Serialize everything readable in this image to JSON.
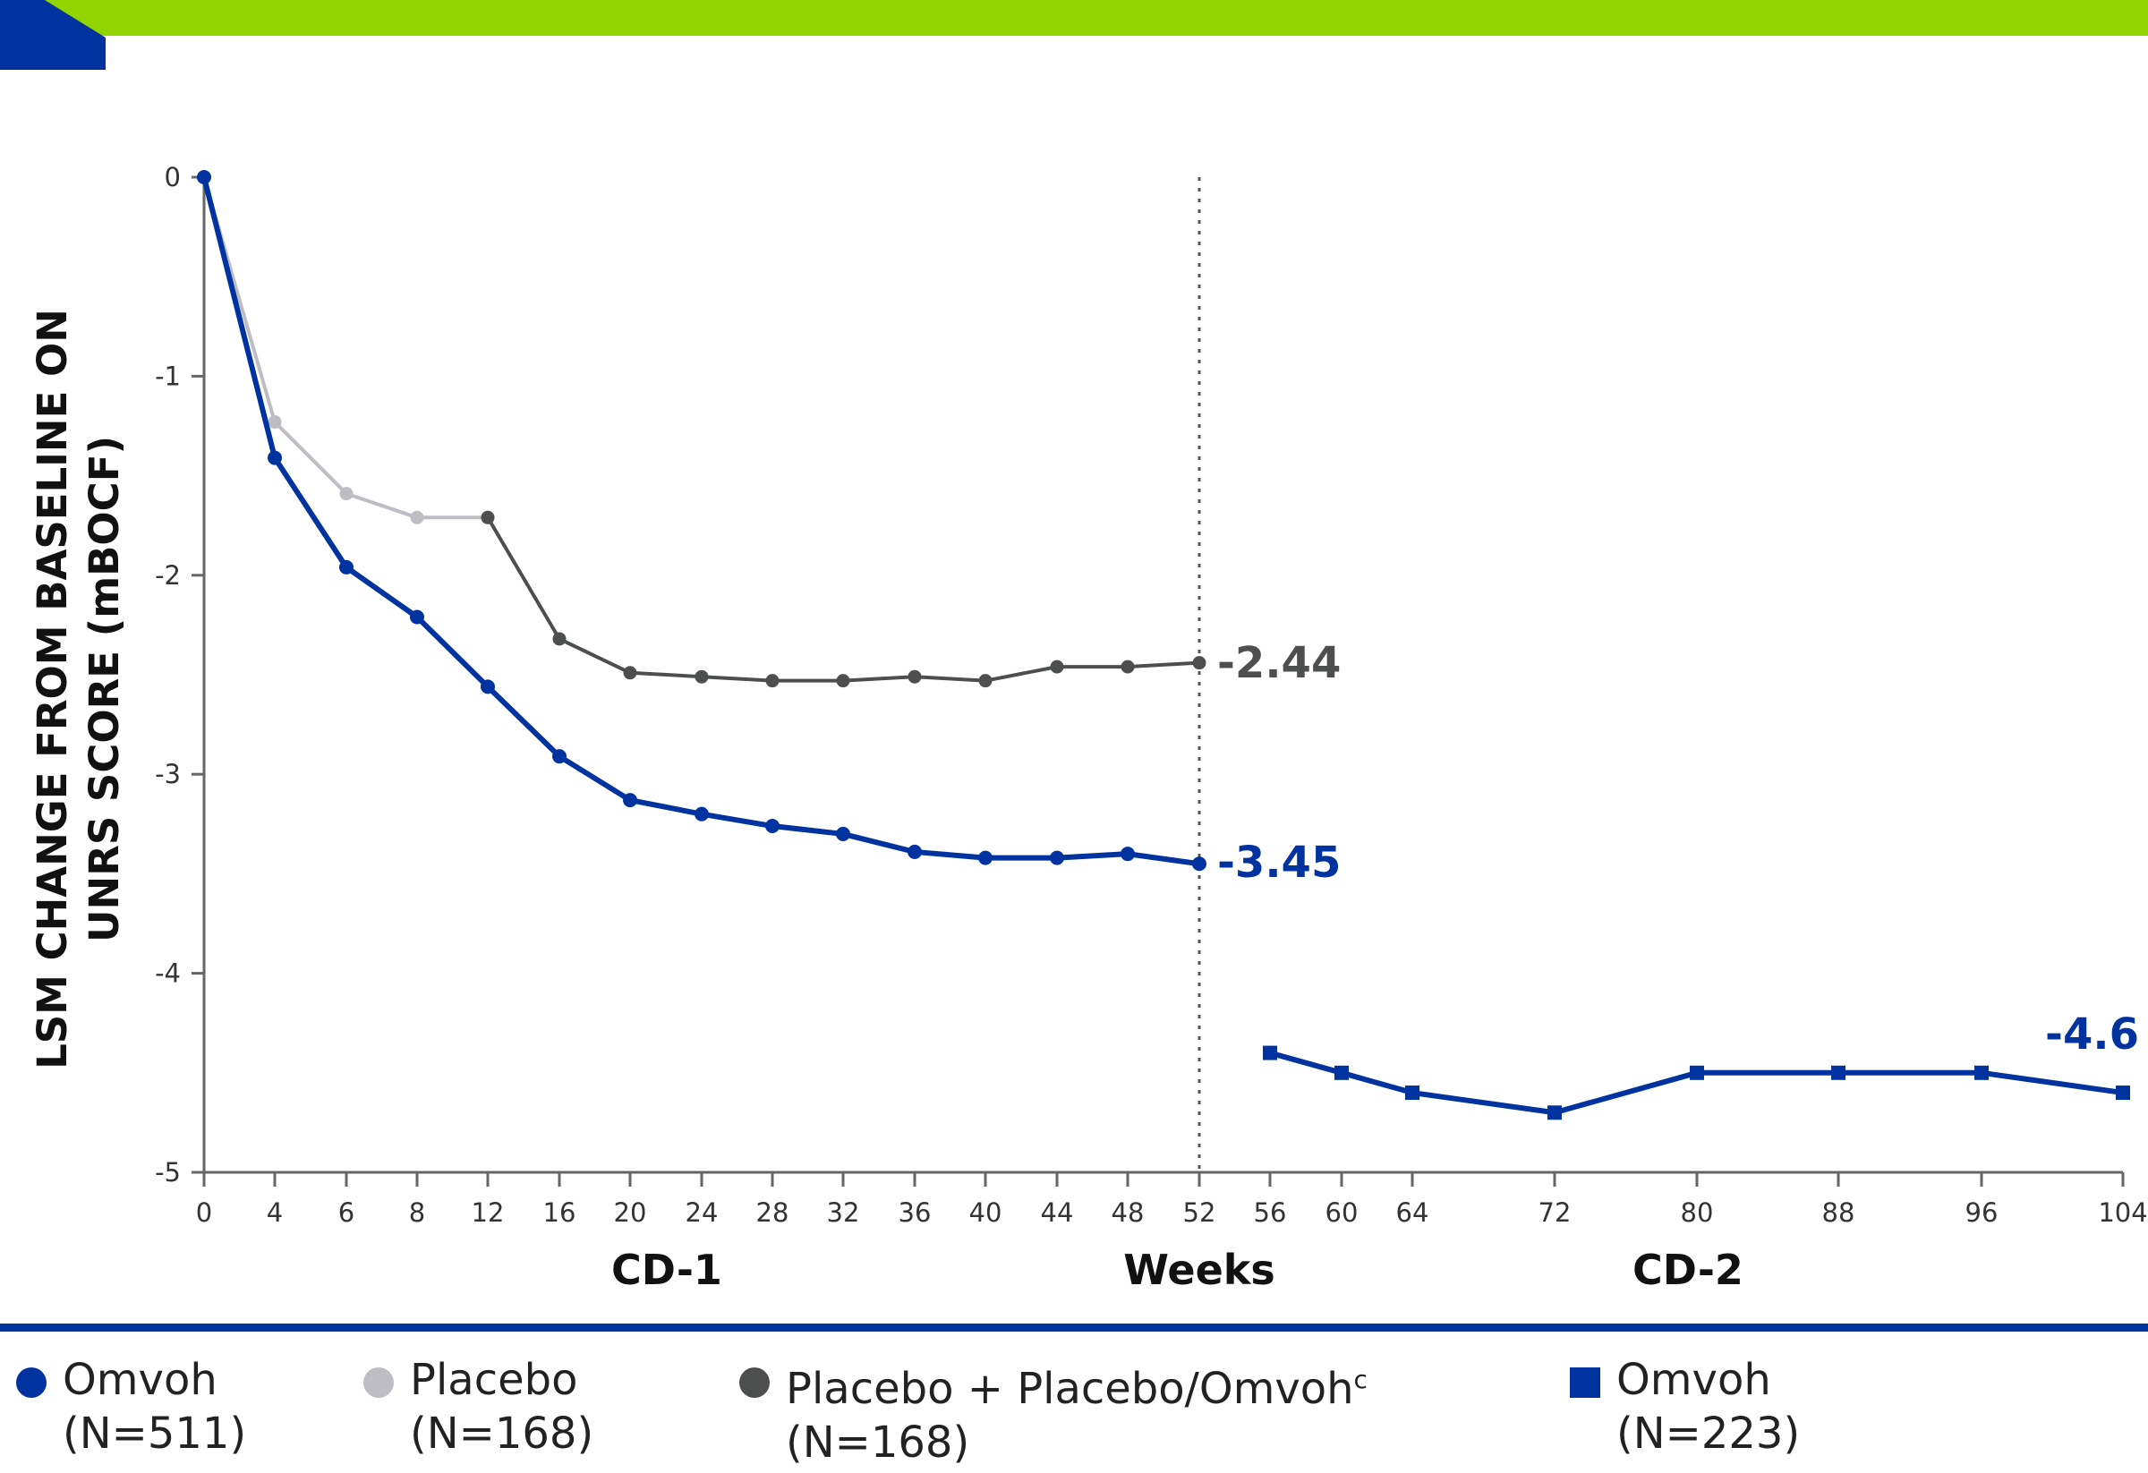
{
  "colors": {
    "accent_green": "#92d400",
    "brand_blue": "#0033a0",
    "placebo_gray": "#bdbdc3",
    "switch_dark": "#4d4f4e"
  },
  "chart_data": {
    "type": "line",
    "ylabel": [
      "LSM CHANGE FROM BASELINE ON",
      "UNRS SCORE (mBOCF)"
    ],
    "xlabel": "Weeks",
    "ylim": [
      -5,
      0
    ],
    "yticks": [
      0,
      -1,
      -2,
      -3,
      -4,
      -5
    ],
    "xticks": [
      0,
      4,
      6,
      8,
      12,
      16,
      20,
      24,
      28,
      32,
      36,
      40,
      44,
      48,
      52,
      56,
      60,
      64,
      72,
      80,
      88,
      96,
      104
    ],
    "period_labels": [
      "CD-1",
      "CD-2"
    ],
    "grid": false,
    "legend_position": "bottom",
    "series": [
      {
        "name": "Omvoh",
        "n_label": "(N=511)",
        "marker": "circle",
        "color": "#0033a0",
        "points": [
          [
            0,
            0
          ],
          [
            4,
            -1.41
          ],
          [
            6,
            -1.96
          ],
          [
            8,
            -2.21
          ],
          [
            12,
            -2.56
          ],
          [
            16,
            -2.91
          ],
          [
            20,
            -3.13
          ],
          [
            24,
            -3.2
          ],
          [
            28,
            -3.26
          ],
          [
            32,
            -3.3
          ],
          [
            36,
            -3.39
          ],
          [
            40,
            -3.42
          ],
          [
            44,
            -3.42
          ],
          [
            48,
            -3.4
          ],
          [
            52,
            -3.45
          ]
        ],
        "end_label": "-3.45"
      },
      {
        "name": "Placebo",
        "n_label": "(N=168)",
        "marker": "circle",
        "color": "#bdbdc3",
        "points": [
          [
            0,
            0
          ],
          [
            4,
            -1.23
          ],
          [
            6,
            -1.59
          ],
          [
            8,
            -1.71
          ],
          [
            12,
            -1.71
          ]
        ]
      },
      {
        "name": "Placebo + Placebo/Omvoh",
        "name_sup": "c",
        "n_label": "(N=168)",
        "marker": "circle",
        "color": "#4d4f4e",
        "points": [
          [
            12,
            -1.71
          ],
          [
            16,
            -2.32
          ],
          [
            20,
            -2.49
          ],
          [
            24,
            -2.51
          ],
          [
            28,
            -2.53
          ],
          [
            32,
            -2.53
          ],
          [
            36,
            -2.51
          ],
          [
            40,
            -2.53
          ],
          [
            44,
            -2.46
          ],
          [
            48,
            -2.46
          ],
          [
            52,
            -2.44
          ]
        ],
        "end_label": "-2.44"
      },
      {
        "name": "Omvoh",
        "n_label": "(N=223)",
        "marker": "square",
        "color": "#0033a0",
        "points": [
          [
            56,
            -4.4
          ],
          [
            60,
            -4.5
          ],
          [
            64,
            -4.6
          ],
          [
            72,
            -4.7
          ],
          [
            80,
            -4.5
          ],
          [
            88,
            -4.5
          ],
          [
            96,
            -4.5
          ],
          [
            104,
            -4.6
          ]
        ],
        "end_label": "-4.6"
      }
    ]
  }
}
